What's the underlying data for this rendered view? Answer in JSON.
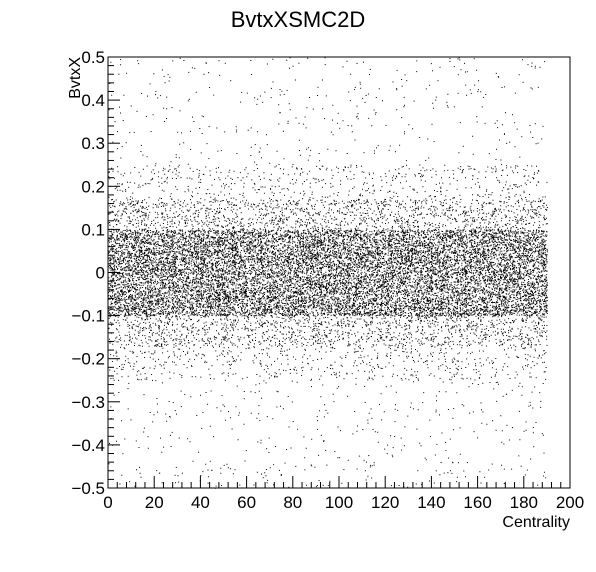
{
  "chart_data": {
    "type": "scatter",
    "title": "BvtxXSMC2D",
    "xlabel": "Centrality",
    "ylabel": "BvtxX",
    "xlim": [
      0,
      200
    ],
    "ylim": [
      -0.5,
      0.5
    ],
    "x_ticks": [
      0,
      20,
      40,
      60,
      80,
      100,
      120,
      140,
      160,
      180,
      200
    ],
    "y_ticks": [
      -0.5,
      -0.4,
      -0.3,
      -0.2,
      -0.1,
      0,
      0.1,
      0.2,
      0.3,
      0.4,
      0.5
    ],
    "x_tick_labels": [
      "0",
      "20",
      "40",
      "60",
      "80",
      "100",
      "120",
      "140",
      "160",
      "180",
      "200"
    ],
    "y_tick_labels": [
      "−0.5",
      "−0.4",
      "−0.3",
      "−0.2",
      "−0.1",
      "0",
      "0.1",
      "0.2",
      "0.3",
      "0.4",
      "0.5"
    ],
    "x_data_range": [
      0,
      190
    ],
    "core_band": [
      -0.1,
      0.1
    ],
    "mid_band": [
      -0.17,
      0.17
    ],
    "grid": false,
    "legend": "none",
    "marker_color": "#000000"
  }
}
